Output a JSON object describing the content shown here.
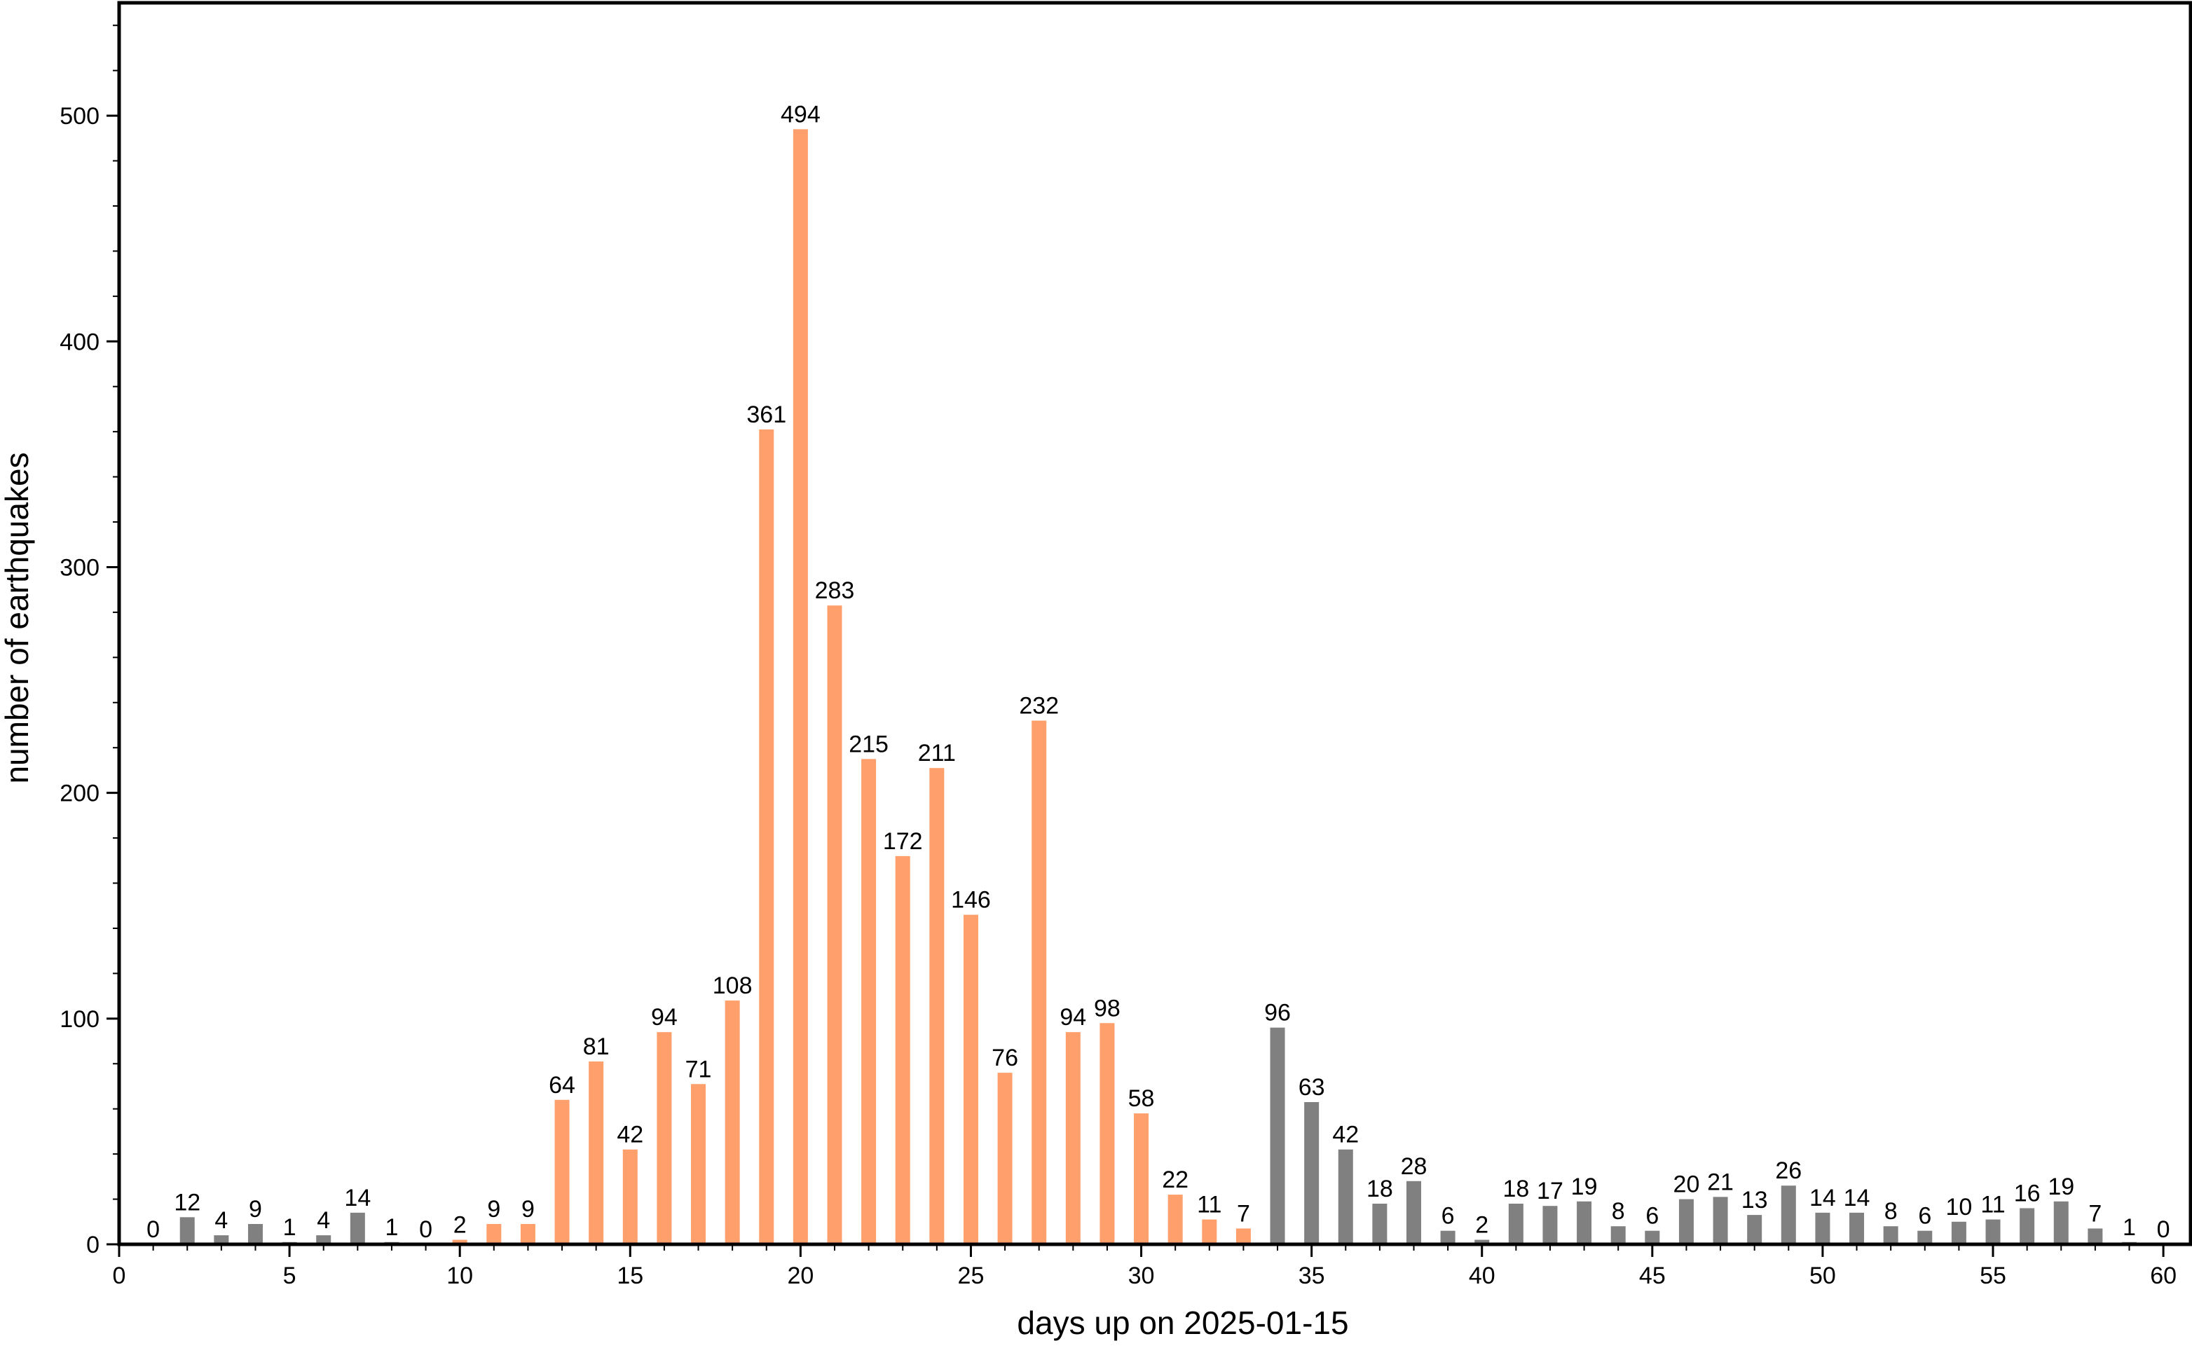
{
  "chart_data": {
    "type": "bar",
    "xlabel": "days up on 2025-01-15",
    "ylabel": "number of earthquakes",
    "xlim": [
      0,
      60.8
    ],
    "ylim": [
      0,
      550
    ],
    "x_ticks": [
      0,
      5,
      10,
      15,
      20,
      25,
      30,
      35,
      40,
      45,
      50,
      55,
      60
    ],
    "x_minor_step": 1,
    "y_ticks": [
      0,
      100,
      200,
      300,
      400,
      500
    ],
    "y_minor_step": 20,
    "grid": false,
    "colors": {
      "highlight": "#ffa06c",
      "normal": "#808080"
    },
    "highlight_range": [
      10,
      33
    ],
    "x": [
      1,
      2,
      3,
      4,
      5,
      6,
      7,
      8,
      9,
      10,
      11,
      12,
      13,
      14,
      15,
      16,
      17,
      18,
      19,
      20,
      21,
      22,
      23,
      24,
      25,
      26,
      27,
      28,
      29,
      30,
      31,
      32,
      33,
      34,
      35,
      36,
      37,
      38,
      39,
      40,
      41,
      42,
      43,
      44,
      45,
      46,
      47,
      48,
      49,
      50,
      51,
      52,
      53,
      54,
      55,
      56,
      57,
      58,
      59,
      60
    ],
    "values": [
      0,
      12,
      4,
      9,
      1,
      4,
      14,
      1,
      0,
      2,
      9,
      9,
      64,
      81,
      42,
      94,
      71,
      108,
      361,
      494,
      283,
      215,
      172,
      211,
      146,
      76,
      232,
      94,
      98,
      58,
      22,
      11,
      7,
      96,
      63,
      42,
      18,
      28,
      6,
      2,
      18,
      17,
      19,
      8,
      6,
      20,
      21,
      13,
      26,
      14,
      14,
      8,
      6,
      10,
      11,
      16,
      19,
      7,
      1,
      0
    ]
  }
}
